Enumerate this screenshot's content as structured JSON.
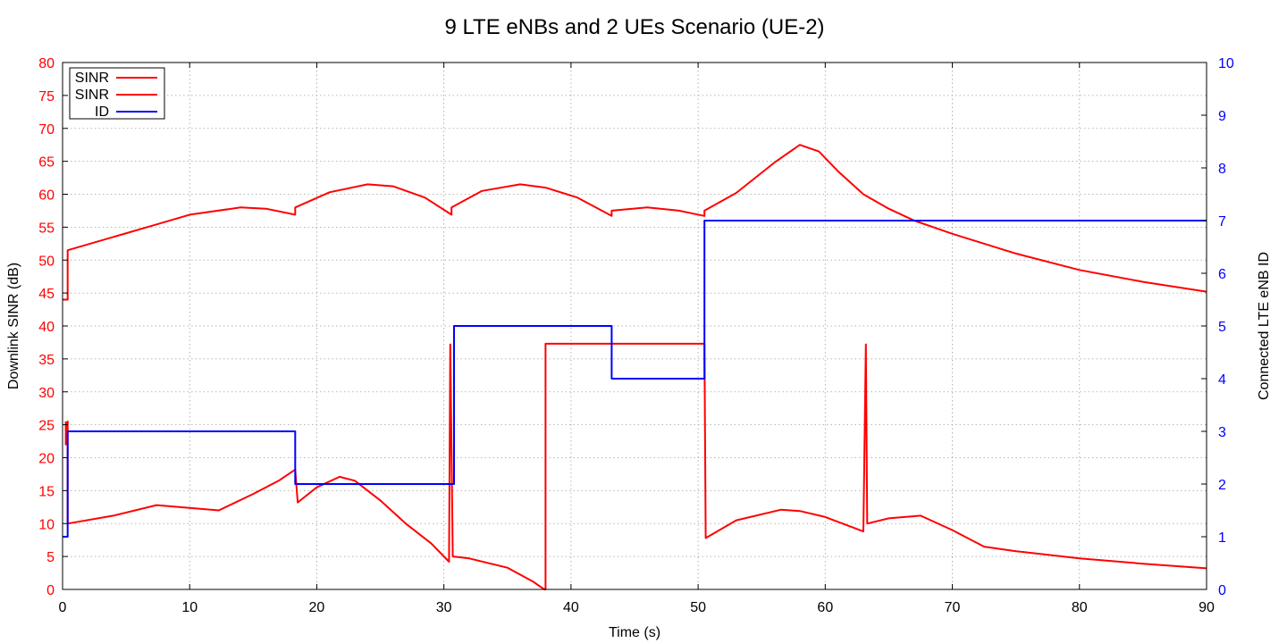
{
  "chart_data": {
    "type": "line",
    "title": "9 LTE eNBs and 2 UEs Scenario (UE-2)",
    "xlabel": "Time (s)",
    "ylabel": "Downlink SINR (dB)",
    "y2label": "Connected LTE eNB ID",
    "xlim": [
      0,
      90
    ],
    "ylim": [
      0,
      80
    ],
    "y2lim": [
      0,
      10
    ],
    "x_ticks": [
      "0",
      "10",
      "20",
      "30",
      "40",
      "50",
      "60",
      "70",
      "80",
      "90"
    ],
    "y_ticks": [
      "0",
      "5",
      "10",
      "15",
      "20",
      "25",
      "30",
      "35",
      "40",
      "45",
      "50",
      "55",
      "60",
      "65",
      "70",
      "75",
      "80"
    ],
    "y2_ticks": [
      "0",
      "1",
      "2",
      "3",
      "4",
      "5",
      "6",
      "7",
      "8",
      "9",
      "10"
    ],
    "grid": true,
    "legend_position": "top-left",
    "colors": {
      "sinr": "#ff0000",
      "id": "#0000ff",
      "left_axis": "#ff0000",
      "right_axis": "#0000ff"
    },
    "series": [
      {
        "name": "SINR",
        "axis": "left",
        "color": "#ff0000",
        "points": [
          [
            0,
            44
          ],
          [
            0.4,
            44
          ],
          [
            0.4,
            51.5
          ],
          [
            7,
            55.2
          ],
          [
            10,
            56.9
          ],
          [
            14,
            58
          ],
          [
            16,
            57.8
          ],
          [
            18.3,
            56.9
          ],
          [
            18.3,
            58
          ],
          [
            21,
            60.3
          ],
          [
            24,
            61.5
          ],
          [
            26,
            61.2
          ],
          [
            28.5,
            59.5
          ],
          [
            30.6,
            56.9
          ],
          [
            30.6,
            58
          ],
          [
            33,
            60.5
          ],
          [
            36,
            61.5
          ],
          [
            38,
            61
          ],
          [
            40.5,
            59.5
          ],
          [
            43.2,
            56.7
          ],
          [
            43.2,
            57.5
          ],
          [
            46,
            58
          ],
          [
            48.5,
            57.5
          ],
          [
            50.5,
            56.7
          ],
          [
            50.5,
            57.5
          ],
          [
            53,
            60.2
          ],
          [
            56,
            64.8
          ],
          [
            58,
            67.5
          ],
          [
            59.5,
            66.5
          ],
          [
            61,
            63.5
          ],
          [
            63,
            60
          ],
          [
            65,
            57.8
          ],
          [
            67,
            56
          ],
          [
            70,
            54
          ],
          [
            75,
            51
          ],
          [
            80,
            48.5
          ],
          [
            85,
            46.7
          ],
          [
            90,
            45.2
          ]
        ]
      },
      {
        "name": "SINR",
        "axis": "left",
        "color": "#ff0000",
        "points": [
          [
            0.25,
            25.5
          ],
          [
            0.25,
            22
          ],
          [
            0.4,
            25.5
          ],
          [
            0.4,
            10
          ],
          [
            4,
            11.2
          ],
          [
            7.4,
            12.8
          ],
          [
            12.3,
            12
          ],
          [
            15,
            14.5
          ],
          [
            17,
            16.5
          ],
          [
            18.3,
            18.2
          ],
          [
            18.5,
            13.2
          ],
          [
            20,
            15.5
          ],
          [
            21.8,
            17.1
          ],
          [
            23,
            16.5
          ],
          [
            25,
            13.5
          ],
          [
            27,
            10
          ],
          [
            29,
            7
          ],
          [
            30.4,
            4.2
          ],
          [
            30.5,
            37.2
          ],
          [
            30.7,
            5
          ],
          [
            32,
            4.7
          ],
          [
            35,
            3.3
          ],
          [
            37,
            1.2
          ],
          [
            37.9,
            -0.5
          ],
          [
            38,
            0
          ],
          [
            38,
            37.3
          ],
          [
            50.5,
            37.3
          ],
          [
            50.6,
            7.8
          ],
          [
            53,
            10.5
          ],
          [
            56.5,
            12.1
          ],
          [
            58,
            11.9
          ],
          [
            60,
            11
          ],
          [
            63,
            8.8
          ],
          [
            63.2,
            37.2
          ],
          [
            63.3,
            10
          ],
          [
            65,
            10.8
          ],
          [
            67.5,
            11.2
          ],
          [
            70,
            9
          ],
          [
            72.5,
            6.5
          ],
          [
            75,
            5.8
          ],
          [
            80,
            4.7
          ],
          [
            85,
            3.9
          ],
          [
            90,
            3.2
          ]
        ]
      },
      {
        "name": "ID",
        "axis": "right",
        "color": "#0000ff",
        "points": [
          [
            0,
            1
          ],
          [
            0.4,
            1
          ],
          [
            0.4,
            3
          ],
          [
            18.3,
            3
          ],
          [
            18.3,
            2
          ],
          [
            30.8,
            2
          ],
          [
            30.8,
            5
          ],
          [
            43.2,
            5
          ],
          [
            43.2,
            4
          ],
          [
            50.5,
            4
          ],
          [
            50.5,
            7
          ],
          [
            90,
            7
          ]
        ]
      }
    ]
  }
}
